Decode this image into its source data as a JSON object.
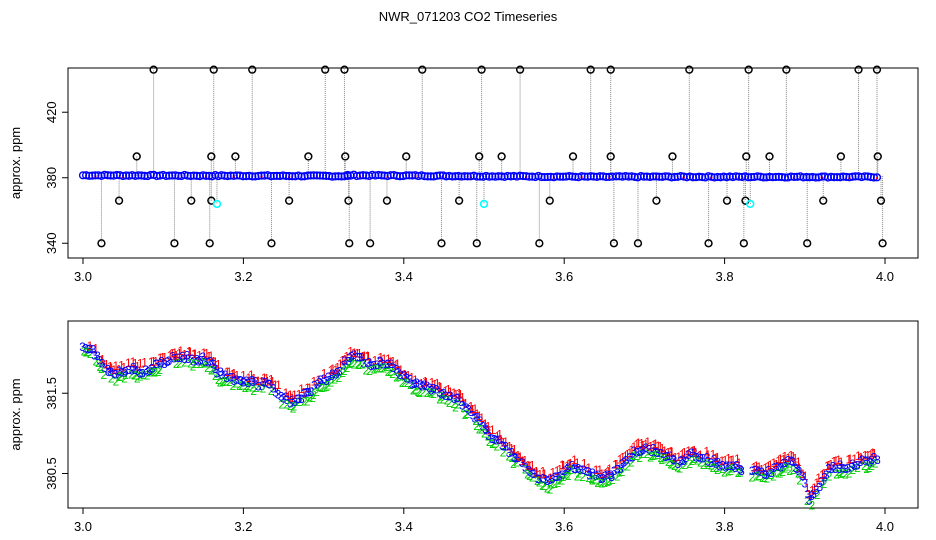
{
  "chart_data": [
    {
      "type": "scatter",
      "title": "NWR_071203  CO2 Timeseries",
      "ylabel": "approx. ppm",
      "xlim": [
        3.0,
        4.0
      ],
      "ylim": [
        331,
        447
      ],
      "xticks": [
        3.0,
        3.2,
        3.4,
        3.6,
        3.8,
        4.0
      ],
      "xtick_labels": [
        "3.0",
        "3.2",
        "3.4",
        "3.6",
        "3.8",
        "4.0"
      ],
      "yticks": [
        340,
        380,
        420
      ],
      "ytick_labels": [
        "340",
        "380",
        "420"
      ],
      "grid": false,
      "baseline_segments": [
        {
          "x": [
            3.0,
            3.33
          ],
          "y": [
            381.5,
            381.0
          ]
        },
        {
          "x": [
            3.33,
            3.66
          ],
          "y": [
            381.5,
            380.5
          ]
        },
        {
          "x": [
            3.665,
            3.99
          ],
          "y": [
            380.6,
            380.5
          ]
        }
      ],
      "colors": {
        "main": "#0000ff",
        "outlier": "#000000",
        "flag": "#00ffff",
        "minor": "#ff0000"
      },
      "outliers": [
        {
          "x": 3.088,
          "y": 446
        },
        {
          "x": 3.163,
          "y": 446
        },
        {
          "x": 3.211,
          "y": 446
        },
        {
          "x": 3.302,
          "y": 446
        },
        {
          "x": 3.326,
          "y": 446
        },
        {
          "x": 3.423,
          "y": 446
        },
        {
          "x": 3.497,
          "y": 446
        },
        {
          "x": 3.545,
          "y": 446
        },
        {
          "x": 3.633,
          "y": 446
        },
        {
          "x": 3.658,
          "y": 446
        },
        {
          "x": 3.756,
          "y": 446
        },
        {
          "x": 3.83,
          "y": 446
        },
        {
          "x": 3.877,
          "y": 446
        },
        {
          "x": 3.967,
          "y": 446
        },
        {
          "x": 3.99,
          "y": 446
        },
        {
          "x": 3.067,
          "y": 393
        },
        {
          "x": 3.16,
          "y": 393
        },
        {
          "x": 3.19,
          "y": 393
        },
        {
          "x": 3.281,
          "y": 393
        },
        {
          "x": 3.327,
          "y": 393
        },
        {
          "x": 3.403,
          "y": 393
        },
        {
          "x": 3.494,
          "y": 393
        },
        {
          "x": 3.522,
          "y": 393
        },
        {
          "x": 3.611,
          "y": 393
        },
        {
          "x": 3.658,
          "y": 393
        },
        {
          "x": 3.735,
          "y": 393
        },
        {
          "x": 3.827,
          "y": 393
        },
        {
          "x": 3.856,
          "y": 393
        },
        {
          "x": 3.945,
          "y": 393
        },
        {
          "x": 3.991,
          "y": 393
        },
        {
          "x": 3.045,
          "y": 366
        },
        {
          "x": 3.135,
          "y": 366
        },
        {
          "x": 3.16,
          "y": 366
        },
        {
          "x": 3.257,
          "y": 366
        },
        {
          "x": 3.331,
          "y": 366
        },
        {
          "x": 3.379,
          "y": 366
        },
        {
          "x": 3.469,
          "y": 366
        },
        {
          "x": 3.582,
          "y": 366
        },
        {
          "x": 3.715,
          "y": 366
        },
        {
          "x": 3.803,
          "y": 366
        },
        {
          "x": 3.826,
          "y": 366
        },
        {
          "x": 3.923,
          "y": 366
        },
        {
          "x": 3.995,
          "y": 366
        },
        {
          "x": 3.023,
          "y": 340
        },
        {
          "x": 3.114,
          "y": 340
        },
        {
          "x": 3.158,
          "y": 340
        },
        {
          "x": 3.235,
          "y": 340
        },
        {
          "x": 3.332,
          "y": 340
        },
        {
          "x": 3.358,
          "y": 340
        },
        {
          "x": 3.447,
          "y": 340
        },
        {
          "x": 3.491,
          "y": 340
        },
        {
          "x": 3.569,
          "y": 340
        },
        {
          "x": 3.662,
          "y": 340
        },
        {
          "x": 3.692,
          "y": 340
        },
        {
          "x": 3.78,
          "y": 340
        },
        {
          "x": 3.824,
          "y": 340
        },
        {
          "x": 3.903,
          "y": 340
        },
        {
          "x": 3.997,
          "y": 340
        }
      ],
      "flagged": [
        {
          "x": 3.167,
          "y": 364
        },
        {
          "x": 3.5,
          "y": 364
        },
        {
          "x": 3.832,
          "y": 364
        }
      ]
    },
    {
      "type": "scatter",
      "ylabel": "approx. ppm",
      "xlim": [
        3.0,
        4.0
      ],
      "ylim": [
        380.07,
        382.4
      ],
      "xticks": [
        3.0,
        3.2,
        3.4,
        3.6,
        3.8,
        4.0
      ],
      "xtick_labels": [
        "3.0",
        "3.2",
        "3.4",
        "3.6",
        "3.8",
        "4.0"
      ],
      "yticks": [
        380.5,
        381.5
      ],
      "ytick_labels": [
        "380.5",
        "381.5"
      ],
      "grid": false,
      "symbols": [
        "1",
        "2",
        "3"
      ],
      "symbol_colors": {
        "1": "#ff0000",
        "2": "#00cc00",
        "3": "#0000ff"
      },
      "trend": [
        [
          3.0,
          382.1
        ],
        [
          3.01,
          382.05
        ],
        [
          3.02,
          381.95
        ],
        [
          3.03,
          381.78
        ],
        [
          3.04,
          381.75
        ],
        [
          3.05,
          381.78
        ],
        [
          3.06,
          381.82
        ],
        [
          3.07,
          381.78
        ],
        [
          3.08,
          381.8
        ],
        [
          3.09,
          381.85
        ],
        [
          3.1,
          381.88
        ],
        [
          3.11,
          381.95
        ],
        [
          3.12,
          381.93
        ],
        [
          3.13,
          381.97
        ],
        [
          3.14,
          381.92
        ],
        [
          3.15,
          381.95
        ],
        [
          3.16,
          381.88
        ],
        [
          3.17,
          381.75
        ],
        [
          3.18,
          381.72
        ],
        [
          3.19,
          381.68
        ],
        [
          3.2,
          381.65
        ],
        [
          3.21,
          381.65
        ],
        [
          3.22,
          381.62
        ],
        [
          3.23,
          381.62
        ],
        [
          3.24,
          381.55
        ],
        [
          3.25,
          381.45
        ],
        [
          3.26,
          381.4
        ],
        [
          3.27,
          381.45
        ],
        [
          3.28,
          381.5
        ],
        [
          3.29,
          381.6
        ],
        [
          3.3,
          381.68
        ],
        [
          3.31,
          381.72
        ],
        [
          3.32,
          381.8
        ],
        [
          3.33,
          381.92
        ],
        [
          3.34,
          381.97
        ],
        [
          3.35,
          381.92
        ],
        [
          3.36,
          381.85
        ],
        [
          3.37,
          381.9
        ],
        [
          3.38,
          381.88
        ],
        [
          3.39,
          381.8
        ],
        [
          3.4,
          381.72
        ],
        [
          3.41,
          381.65
        ],
        [
          3.42,
          381.6
        ],
        [
          3.43,
          381.58
        ],
        [
          3.44,
          381.55
        ],
        [
          3.45,
          381.5
        ],
        [
          3.46,
          381.45
        ],
        [
          3.47,
          381.42
        ],
        [
          3.48,
          381.3
        ],
        [
          3.49,
          381.22
        ],
        [
          3.5,
          381.08
        ],
        [
          3.51,
          380.97
        ],
        [
          3.52,
          380.9
        ],
        [
          3.53,
          380.8
        ],
        [
          3.54,
          380.7
        ],
        [
          3.55,
          380.62
        ],
        [
          3.56,
          380.52
        ],
        [
          3.57,
          380.45
        ],
        [
          3.58,
          380.4
        ],
        [
          3.59,
          380.45
        ],
        [
          3.6,
          380.55
        ],
        [
          3.61,
          380.6
        ],
        [
          3.62,
          380.55
        ],
        [
          3.63,
          380.52
        ],
        [
          3.64,
          380.48
        ],
        [
          3.65,
          380.45
        ],
        [
          3.66,
          380.5
        ],
        [
          3.67,
          380.6
        ],
        [
          3.68,
          380.7
        ],
        [
          3.69,
          380.8
        ],
        [
          3.7,
          380.82
        ],
        [
          3.71,
          380.8
        ],
        [
          3.72,
          380.78
        ],
        [
          3.73,
          380.72
        ],
        [
          3.74,
          380.65
        ],
        [
          3.75,
          380.68
        ],
        [
          3.76,
          380.75
        ],
        [
          3.77,
          380.7
        ],
        [
          3.78,
          380.68
        ],
        [
          3.79,
          380.65
        ],
        [
          3.8,
          380.6
        ],
        [
          3.81,
          380.62
        ],
        [
          3.82,
          380.58
        ],
        [
          3.83,
          380.52
        ],
        [
          3.84,
          380.55
        ],
        [
          3.85,
          380.5
        ],
        [
          3.86,
          380.55
        ],
        [
          3.87,
          380.6
        ],
        [
          3.88,
          380.65
        ],
        [
          3.89,
          380.6
        ],
        [
          3.9,
          380.4
        ],
        [
          3.905,
          380.15
        ],
        [
          3.91,
          380.22
        ],
        [
          3.92,
          380.4
        ],
        [
          3.93,
          380.55
        ],
        [
          3.94,
          380.6
        ],
        [
          3.95,
          380.58
        ],
        [
          3.96,
          380.62
        ],
        [
          3.97,
          380.65
        ],
        [
          3.98,
          380.65
        ],
        [
          3.99,
          380.7
        ]
      ]
    }
  ]
}
